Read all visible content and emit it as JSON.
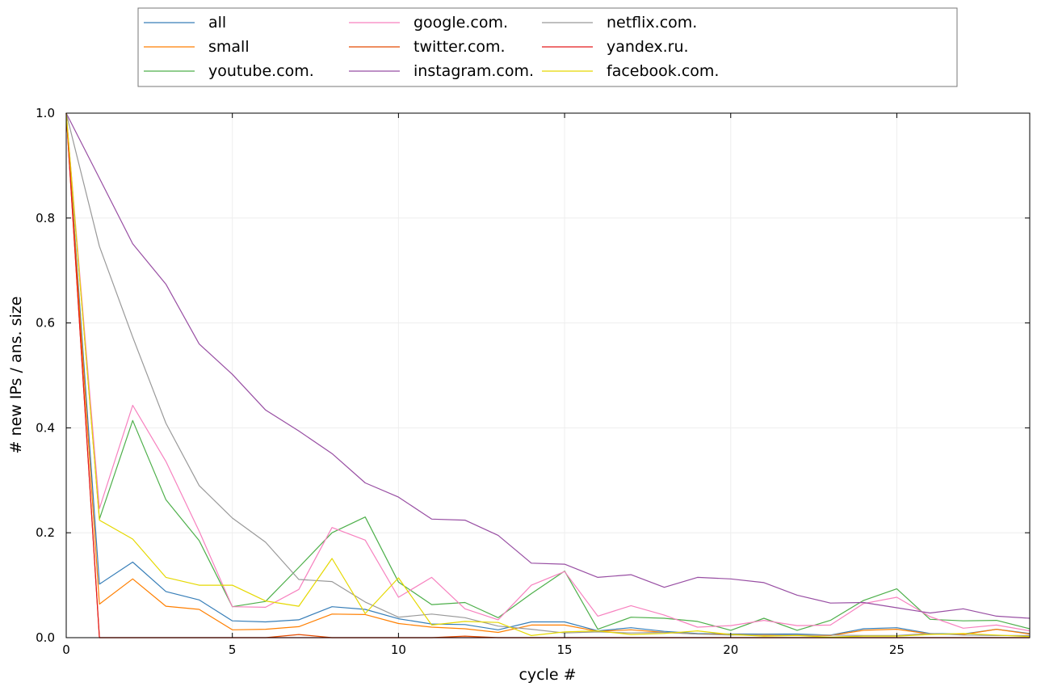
{
  "chart_data": {
    "type": "line",
    "title": "",
    "xlabel": "cycle #",
    "ylabel": "# new IPs / ans. size",
    "xlim": [
      0,
      29
    ],
    "ylim": [
      0,
      1.0
    ],
    "xticks": [
      0,
      5,
      10,
      15,
      20,
      25
    ],
    "yticks": [
      0.0,
      0.2,
      0.4,
      0.6,
      0.8,
      1.0
    ],
    "xtick_labels": [
      "0",
      "5",
      "10",
      "15",
      "20",
      "25"
    ],
    "ytick_labels": [
      "0.0",
      "0.2",
      "0.4",
      "0.6",
      "0.8",
      "1.0"
    ],
    "grid": true,
    "legend_placement": "top-center, above plot, 4 columns",
    "x": [
      0,
      1,
      2,
      3,
      4,
      5,
      6,
      7,
      8,
      9,
      10,
      11,
      12,
      13,
      14,
      15,
      16,
      17,
      18,
      19,
      20,
      21,
      22,
      23,
      24,
      25,
      26,
      27,
      28,
      29
    ],
    "series": [
      {
        "name": "all",
        "color": "#377eb8",
        "values": [
          1.0,
          0.102,
          0.144,
          0.088,
          0.072,
          0.032,
          0.03,
          0.034,
          0.059,
          0.054,
          0.036,
          0.026,
          0.025,
          0.015,
          0.03,
          0.03,
          0.013,
          0.019,
          0.012,
          0.008,
          0.007,
          0.007,
          0.007,
          0.005,
          0.017,
          0.019,
          0.008,
          0.007,
          0.016,
          0.008
        ]
      },
      {
        "name": "small",
        "color": "#ff7f00",
        "values": [
          1.0,
          0.064,
          0.112,
          0.06,
          0.054,
          0.015,
          0.016,
          0.021,
          0.045,
          0.044,
          0.027,
          0.02,
          0.017,
          0.01,
          0.024,
          0.024,
          0.012,
          0.015,
          0.01,
          0.007,
          0.006,
          0.005,
          0.005,
          0.004,
          0.014,
          0.016,
          0.007,
          0.006,
          0.016,
          0.007
        ]
      },
      {
        "name": "youtube.com.",
        "color": "#4daf4a",
        "values": [
          1.0,
          0.226,
          0.414,
          0.263,
          0.185,
          0.059,
          0.069,
          0.134,
          0.2,
          0.23,
          0.106,
          0.063,
          0.067,
          0.038,
          0.084,
          0.127,
          0.016,
          0.039,
          0.037,
          0.031,
          0.014,
          0.037,
          0.014,
          0.033,
          0.071,
          0.093,
          0.035,
          0.032,
          0.033,
          0.017
        ]
      },
      {
        "name": "google.com.",
        "color": "#f781bf",
        "values": [
          1.0,
          0.246,
          0.443,
          0.336,
          0.203,
          0.059,
          0.058,
          0.092,
          0.21,
          0.186,
          0.077,
          0.115,
          0.055,
          0.034,
          0.1,
          0.126,
          0.041,
          0.061,
          0.043,
          0.02,
          0.023,
          0.033,
          0.023,
          0.024,
          0.065,
          0.077,
          0.04,
          0.018,
          0.024,
          0.013
        ]
      },
      {
        "name": "twitter.com.",
        "color": "#e34a00",
        "values": [
          1.0,
          0.0,
          0.0,
          0.0,
          0.0,
          0.0,
          0.0,
          0.006,
          0.0,
          0.0,
          0.0,
          0.0,
          0.003,
          0.0,
          0.0,
          0.0,
          0.0,
          0.0,
          0.0,
          0.0,
          0.0,
          0.0,
          0.0,
          0.0,
          0.0,
          0.0,
          0.0,
          0.0,
          0.0,
          0.0
        ]
      },
      {
        "name": "instagram.com.",
        "color": "#984ea3",
        "values": [
          1.0,
          0.876,
          0.751,
          0.674,
          0.56,
          0.502,
          0.434,
          0.394,
          0.351,
          0.295,
          0.268,
          0.226,
          0.224,
          0.195,
          0.142,
          0.14,
          0.115,
          0.12,
          0.096,
          0.115,
          0.112,
          0.105,
          0.081,
          0.066,
          0.067,
          0.057,
          0.047,
          0.055,
          0.041,
          0.037
        ]
      },
      {
        "name": "netflix.com.",
        "color": "#999999",
        "values": [
          1.0,
          0.746,
          0.573,
          0.409,
          0.29,
          0.228,
          0.182,
          0.111,
          0.107,
          0.068,
          0.039,
          0.045,
          0.038,
          0.022,
          0.016,
          0.009,
          0.011,
          0.009,
          0.01,
          0.007,
          0.005,
          0.006,
          0.005,
          0.005,
          0.004,
          0.004,
          0.008,
          0.005,
          0.004,
          0.004
        ]
      },
      {
        "name": "yandex.ru.",
        "color": "#e41a1c",
        "values": [
          1.0,
          0.0,
          0.0,
          0.0,
          0.0,
          0.0,
          0.0,
          0.0,
          0.0,
          0.0,
          0.0,
          0.0,
          0.0,
          0.0,
          0.0,
          0.0,
          0.0,
          0.0,
          0.0,
          0.0,
          0.0,
          0.0,
          0.0,
          0.0,
          0.0,
          0.0,
          0.0,
          0.0,
          0.0,
          0.0
        ]
      },
      {
        "name": "facebook.com.",
        "color": "#e5d800",
        "values": [
          1.0,
          0.224,
          0.188,
          0.115,
          0.1,
          0.1,
          0.07,
          0.06,
          0.151,
          0.046,
          0.114,
          0.024,
          0.031,
          0.029,
          0.004,
          0.011,
          0.013,
          0.006,
          0.008,
          0.013,
          0.006,
          0.003,
          0.004,
          0.001,
          0.003,
          0.003,
          0.006,
          0.008,
          0.005,
          0.002
        ]
      }
    ]
  }
}
